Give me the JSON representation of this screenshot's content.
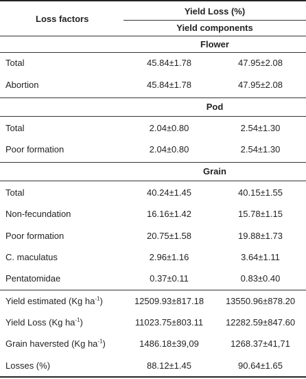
{
  "header": {
    "loss_factors": "Loss factors",
    "yield_loss": "Yield Loss (%)",
    "yield_components": "Yield components"
  },
  "sections": [
    {
      "title": "Flower",
      "rows": [
        {
          "label": "Total",
          "v1": "45.84±1.78",
          "v2": "47.95±2.08"
        },
        {
          "label": "Abortion",
          "v1": "45.84±1.78",
          "v2": "47.95±2.08"
        }
      ]
    },
    {
      "title": "Pod",
      "rows": [
        {
          "label": "Total",
          "v1": "2.04±0.80",
          "v2": "2.54±1.30"
        },
        {
          "label": "Poor formation",
          "v1": "2.04±0.80",
          "v2": "2.54±1.30"
        }
      ]
    },
    {
      "title": "Grain",
      "rows": [
        {
          "label": "Total",
          "v1": "40.24±1.45",
          "v2": "40.15±1.55"
        },
        {
          "label": "Non-fecundation",
          "v1": "16.16±1.42",
          "v2": "15.78±1.15"
        },
        {
          "label": "Poor formation",
          "v1": "20.75±1.58",
          "v2": "19.88±1.73"
        },
        {
          "label": "C. maculatus",
          "v1": "2.96±1.16",
          "v2": "3.64±1.11"
        },
        {
          "label": "Pentatomidae",
          "v1": "0.37±0.11",
          "v2": "0.83±0.40"
        }
      ]
    }
  ],
  "summary": [
    {
      "label": "Yield estimated (Kg ha",
      "sup": "-1",
      "label_end": ")",
      "v1": "12509.93±817.18",
      "v2": "13550.96±878.20"
    },
    {
      "label": "Yield Loss (Kg ha",
      "sup": "-1",
      "label_end": ")",
      "v1": "11023.75±803.11",
      "v2": "12282.59±847.60"
    },
    {
      "label": "Grain haversted (Kg ha",
      "sup": "-1",
      "label_end": ")",
      "v1": "1486.18±39,09",
      "v2": "1268.37±41,71"
    },
    {
      "label": "Losses (%)",
      "sup": "",
      "label_end": "",
      "v1": "88.12±1.45",
      "v2": "90.64±1.65"
    }
  ]
}
